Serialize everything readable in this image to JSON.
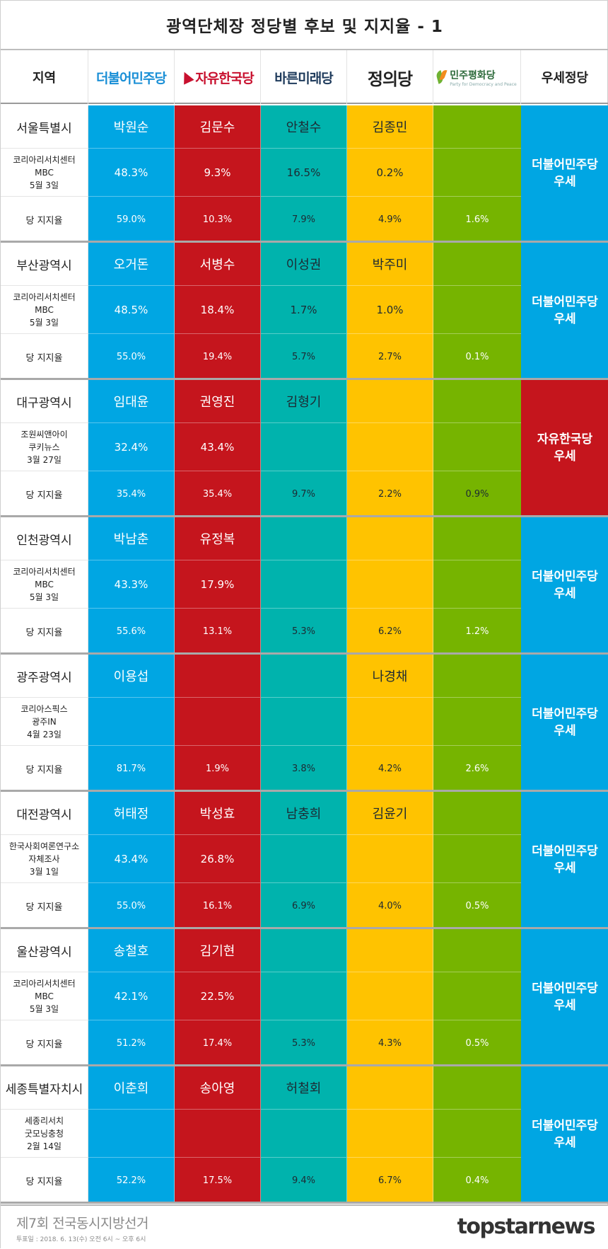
{
  "title": "광역단체장 정당별 후보 및 지지율 - 1",
  "header": {
    "region_label": "지역",
    "lead_label": "우세정당",
    "parties": [
      {
        "key": "dem",
        "name": "더불어민주당"
      },
      {
        "key": "kor",
        "name": "자유한국당"
      },
      {
        "key": "bar",
        "name": "바른미래당"
      },
      {
        "key": "jus",
        "name": "정의당"
      },
      {
        "key": "peace",
        "name": "민주평화당",
        "sub": "Party for Democracy and Peace"
      }
    ]
  },
  "party_support_label": "당 지지율",
  "colors": {
    "dem": "#00a6e3",
    "kor": "#c5151d",
    "bar": "#00b3ad",
    "jus": "#ffc300",
    "peace": "#76b400"
  },
  "regions": [
    {
      "region": "서울특별시",
      "poll": "코리아리서치센터\nMBC\n5월 3일",
      "candidates": [
        "박원순",
        "김문수",
        "안철수",
        "김종민",
        ""
      ],
      "polls": [
        "48.3%",
        "9.3%",
        "16.5%",
        "0.2%",
        ""
      ],
      "support": [
        "59.0%",
        "10.3%",
        "7.9%",
        "4.9%",
        "1.6%"
      ],
      "lead": "더불어민주당\n우세",
      "lead_party": "dem"
    },
    {
      "region": "부산광역시",
      "poll": "코리아리서치센터\nMBC\n5월 3일",
      "candidates": [
        "오거돈",
        "서병수",
        "이성권",
        "박주미",
        ""
      ],
      "polls": [
        "48.5%",
        "18.4%",
        "1.7%",
        "1.0%",
        ""
      ],
      "support": [
        "55.0%",
        "19.4%",
        "5.7%",
        "2.7%",
        "0.1%"
      ],
      "lead": "더불어민주당\n우세",
      "lead_party": "dem"
    },
    {
      "region": "대구광역시",
      "poll": "조원씨앤아이\n쿠키뉴스\n3월 27일",
      "candidates": [
        "임대윤",
        "권영진",
        "김형기",
        "",
        ""
      ],
      "polls": [
        "32.4%",
        "43.4%",
        "",
        "",
        ""
      ],
      "support": [
        "35.4%",
        "35.4%",
        "9.7%",
        "2.2%",
        "0.9%"
      ],
      "lead": "자유한국당\n우세",
      "lead_party": "kor"
    },
    {
      "region": "인천광역시",
      "poll": "코리아리서치센터\nMBC\n5월 3일",
      "candidates": [
        "박남춘",
        "유정복",
        "",
        "",
        ""
      ],
      "polls": [
        "43.3%",
        "17.9%",
        "",
        "",
        ""
      ],
      "support": [
        "55.6%",
        "13.1%",
        "5.3%",
        "6.2%",
        "1.2%"
      ],
      "lead": "더불어민주당\n우세",
      "lead_party": "dem"
    },
    {
      "region": "광주광역시",
      "poll": "코리아스픽스\n광주IN\n4월 23일",
      "candidates": [
        "이용섭",
        "",
        "",
        "나경채",
        ""
      ],
      "polls": [
        "",
        "",
        "",
        "",
        ""
      ],
      "support": [
        "81.7%",
        "1.9%",
        "3.8%",
        "4.2%",
        "2.6%"
      ],
      "lead": "더불어민주당\n우세",
      "lead_party": "dem"
    },
    {
      "region": "대전광역시",
      "poll": "한국사회여론연구소\n자체조사\n3월 1일",
      "candidates": [
        "허태정",
        "박성효",
        "남충희",
        "김윤기",
        ""
      ],
      "polls": [
        "43.4%",
        "26.8%",
        "",
        "",
        ""
      ],
      "support": [
        "55.0%",
        "16.1%",
        "6.9%",
        "4.0%",
        "0.5%"
      ],
      "lead": "더불어민주당\n우세",
      "lead_party": "dem"
    },
    {
      "region": "울산광역시",
      "poll": "코리아리서치센터\nMBC\n5월 3일",
      "candidates": [
        "송철호",
        "김기현",
        "",
        "",
        ""
      ],
      "polls": [
        "42.1%",
        "22.5%",
        "",
        "",
        ""
      ],
      "support": [
        "51.2%",
        "17.4%",
        "5.3%",
        "4.3%",
        "0.5%"
      ],
      "lead": "더불어민주당\n우세",
      "lead_party": "dem"
    },
    {
      "region": "세종특별자치시",
      "poll": "세종리서치\n굿모닝충청\n2월 14일",
      "candidates": [
        "이춘희",
        "송아영",
        "허철회",
        "",
        ""
      ],
      "polls": [
        "",
        "",
        "",
        "",
        ""
      ],
      "support": [
        "52.2%",
        "17.5%",
        "9.4%",
        "6.7%",
        "0.4%"
      ],
      "lead": "더불어민주당\n우세",
      "lead_party": "dem"
    }
  ],
  "footer": {
    "title": "제7회 전국동시지방선거",
    "date": "투표일 : 2018. 6. 13(수) 오전 6시 ~ 오후 6시",
    "brand": "topstarnews"
  }
}
